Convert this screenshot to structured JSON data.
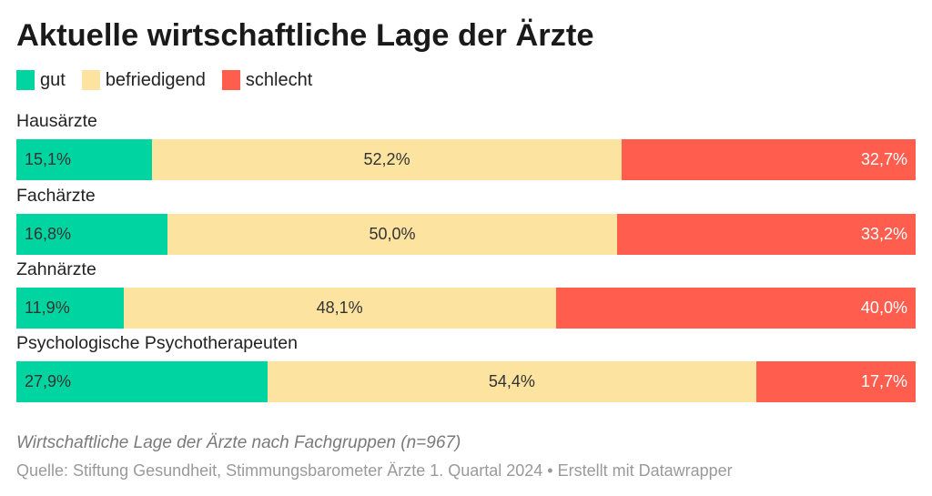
{
  "chart_data": {
    "type": "bar",
    "orientation": "horizontal",
    "stacked": true,
    "title": "Aktuelle wirtschaftliche Lage der Ärzte",
    "notes": "Wirtschaftliche Lage der Ärzte nach Fachgruppen (n=967)",
    "source": "Quelle: Stiftung Gesundheit, Stimmungsbarometer Ärzte 1. Quartal 2024 • Erstellt mit Datawrapper",
    "legend_position": "top-left",
    "grid": false,
    "xlim": [
      0,
      100
    ],
    "categories": [
      "Hausärzte",
      "Fachärzte",
      "Zahnärzte",
      "Psychologische Psychotherapeuten"
    ],
    "series": [
      {
        "name": "gut",
        "color": "#00d4a0",
        "values": [
          15.1,
          16.8,
          11.9,
          27.9
        ],
        "labels": [
          "15,1%",
          "16,8%",
          "11,9%",
          "27,9%"
        ]
      },
      {
        "name": "befriedigend",
        "color": "#fce3a0",
        "values": [
          52.2,
          50.0,
          48.1,
          54.4
        ],
        "labels": [
          "52,2%",
          "50,0%",
          "48,1%",
          "54,4%"
        ]
      },
      {
        "name": "schlecht",
        "color": "#ff5e4f",
        "values": [
          32.7,
          33.2,
          40.0,
          17.7
        ],
        "labels": [
          "32,7%",
          "33,2%",
          "40,0%",
          "17,7%"
        ]
      }
    ]
  }
}
